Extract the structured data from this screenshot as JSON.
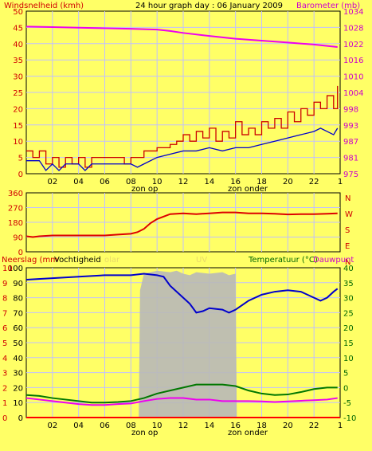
{
  "header": {
    "left_label": "Windsnelheid (kmh)",
    "title": "24 hour graph day : 06 January 2009",
    "right_label": "Barometer (mb)"
  },
  "x_axis": {
    "tick_labels": [
      "02",
      "04",
      "06",
      "08",
      "10",
      "12",
      "14",
      "16",
      "18",
      "20",
      "22",
      "1"
    ],
    "sunrise_label": "zon op",
    "sunset_label": "zon onder"
  },
  "colors": {
    "background": "#ffff66",
    "plot_bg": "#ffff66",
    "grid": "#c0c0ff",
    "wind_gust": "#cc0000",
    "wind_avg": "#0000cc",
    "barometer": "#ee00ee",
    "direction": "#dd0000",
    "humidity": "#0000cc",
    "temperature": "#007700",
    "dewpoint": "#ee00ee",
    "solar": "#b8b8b8",
    "rain": "#ff0000"
  },
  "panels": {
    "wind": {
      "y_left_ticks": [
        "0",
        "5",
        "10",
        "15",
        "20",
        "25",
        "30",
        "35",
        "40",
        "45",
        "50"
      ],
      "y_right_ticks": [
        "975",
        "981",
        "987",
        "993",
        "998",
        "1004",
        "1010",
        "1016",
        "1022",
        "1028",
        "1034"
      ]
    },
    "direction": {
      "y_left_ticks": [
        "0",
        "90",
        "180",
        "270",
        "360"
      ],
      "y_right_letters": [
        "N",
        "W",
        "S",
        "E",
        "N"
      ]
    },
    "weather": {
      "left_label_a": "Neerslag (mm",
      "left_label_b": "Vochtigheid",
      "faint_label_a": "olar",
      "faint_label_b": "UV",
      "right_label_a": "Temperatuur (°C)",
      "right_label_b": "Dauwpunt",
      "y_left_ticks": [
        "0",
        "10",
        "20",
        "30",
        "40",
        "50",
        "60",
        "70",
        "80",
        "90",
        "100"
      ],
      "y_left_small": [
        "0",
        "1",
        "2",
        "3",
        "4",
        "5",
        "6",
        "7",
        "8",
        "9",
        "10"
      ],
      "y_right_ticks": [
        "-10",
        "-5",
        "0",
        "5",
        "10",
        "15",
        "20",
        "25",
        "30",
        "35",
        "40"
      ]
    }
  },
  "chart_data": [
    {
      "type": "line",
      "title": "24 hour graph day : 06 January 2009",
      "x_unit": "hour",
      "xlim": [
        0,
        24
      ],
      "series": [
        {
          "name": "Windsnelheid (kmh)",
          "axis": "left",
          "ylim": [
            0,
            50
          ],
          "points": [
            [
              0,
              7
            ],
            [
              0.5,
              5
            ],
            [
              1,
              7
            ],
            [
              1.5,
              3
            ],
            [
              2,
              5
            ],
            [
              2.5,
              2
            ],
            [
              3,
              5
            ],
            [
              3.5,
              3
            ],
            [
              4,
              5
            ],
            [
              4.5,
              2
            ],
            [
              5,
              5
            ],
            [
              6,
              5
            ],
            [
              7,
              5
            ],
            [
              7.5,
              3
            ],
            [
              8,
              5
            ],
            [
              8.5,
              5
            ],
            [
              9,
              7
            ],
            [
              9.5,
              7
            ],
            [
              10,
              8
            ],
            [
              10.5,
              8
            ],
            [
              11,
              9
            ],
            [
              11.5,
              10
            ],
            [
              12,
              12
            ],
            [
              12.5,
              10
            ],
            [
              13,
              13
            ],
            [
              13.5,
              11
            ],
            [
              14,
              14
            ],
            [
              14.5,
              10
            ],
            [
              15,
              13
            ],
            [
              15.5,
              11
            ],
            [
              16,
              16
            ],
            [
              16.5,
              12
            ],
            [
              17,
              14
            ],
            [
              17.5,
              12
            ],
            [
              18,
              16
            ],
            [
              18.5,
              14
            ],
            [
              19,
              17
            ],
            [
              19.5,
              14
            ],
            [
              20,
              19
            ],
            [
              20.5,
              16
            ],
            [
              21,
              20
            ],
            [
              21.5,
              18
            ],
            [
              22,
              22
            ],
            [
              22.5,
              20
            ],
            [
              23,
              24
            ],
            [
              23.5,
              20
            ],
            [
              23.8,
              27
            ]
          ]
        },
        {
          "name": "Windsnelheid gemiddeld",
          "axis": "left",
          "ylim": [
            0,
            50
          ],
          "points": [
            [
              0,
              4
            ],
            [
              1,
              4
            ],
            [
              1.5,
              1
            ],
            [
              2,
              3
            ],
            [
              2.5,
              1
            ],
            [
              3,
              3
            ],
            [
              4,
              3
            ],
            [
              4.5,
              1
            ],
            [
              5,
              3
            ],
            [
              6,
              3
            ],
            [
              7,
              3
            ],
            [
              8,
              3
            ],
            [
              8.5,
              2
            ],
            [
              9,
              3
            ],
            [
              10,
              5
            ],
            [
              11,
              6
            ],
            [
              12,
              7
            ],
            [
              13,
              7
            ],
            [
              14,
              8
            ],
            [
              15,
              7
            ],
            [
              16,
              8
            ],
            [
              17,
              8
            ],
            [
              18,
              9
            ],
            [
              19,
              10
            ],
            [
              20,
              11
            ],
            [
              21,
              12
            ],
            [
              22,
              13
            ],
            [
              22.5,
              14
            ],
            [
              23,
              13
            ],
            [
              23.5,
              12
            ],
            [
              23.8,
              14
            ]
          ]
        },
        {
          "name": "Barometer (mb)",
          "axis": "right",
          "ylim": [
            975,
            1034
          ],
          "points": [
            [
              0,
              1028.4
            ],
            [
              2,
              1028.2
            ],
            [
              4,
              1028.0
            ],
            [
              6,
              1027.8
            ],
            [
              8,
              1027.6
            ],
            [
              10,
              1027.3
            ],
            [
              11,
              1026.8
            ],
            [
              12,
              1026.1
            ],
            [
              14,
              1025.0
            ],
            [
              16,
              1024.0
            ],
            [
              18,
              1023.3
            ],
            [
              20,
              1022.6
            ],
            [
              22,
              1021.9
            ],
            [
              23.8,
              1021.0
            ]
          ]
        }
      ]
    },
    {
      "type": "line",
      "x_unit": "hour",
      "xlim": [
        0,
        24
      ],
      "series": [
        {
          "name": "Windrichting",
          "ylim": [
            0,
            360
          ],
          "points": [
            [
              0,
              95
            ],
            [
              0.5,
              90
            ],
            [
              1,
              95
            ],
            [
              2,
              100
            ],
            [
              4,
              100
            ],
            [
              6,
              100
            ],
            [
              7,
              105
            ],
            [
              8,
              110
            ],
            [
              8.5,
              120
            ],
            [
              9,
              140
            ],
            [
              9.5,
              175
            ],
            [
              10,
              200
            ],
            [
              10.5,
              215
            ],
            [
              11,
              230
            ],
            [
              12,
              235
            ],
            [
              13,
              230
            ],
            [
              14,
              235
            ],
            [
              15,
              240
            ],
            [
              16,
              240
            ],
            [
              17,
              235
            ],
            [
              18,
              235
            ],
            [
              19,
              232
            ],
            [
              20,
              228
            ],
            [
              21,
              230
            ],
            [
              22,
              230
            ],
            [
              23,
              232
            ],
            [
              23.8,
              235
            ]
          ]
        }
      ]
    },
    {
      "type": "line",
      "x_unit": "hour",
      "xlim": [
        0,
        24
      ],
      "series": [
        {
          "name": "Vochtigheid",
          "axis": "left",
          "ylim": [
            0,
            100
          ],
          "points": [
            [
              0,
              92
            ],
            [
              2,
              93
            ],
            [
              4,
              94
            ],
            [
              6,
              95
            ],
            [
              8,
              95
            ],
            [
              9,
              96
            ],
            [
              10,
              95
            ],
            [
              10.5,
              94
            ],
            [
              11,
              88
            ],
            [
              11.5,
              84
            ],
            [
              12,
              80
            ],
            [
              12.5,
              76
            ],
            [
              13,
              70
            ],
            [
              13.5,
              71
            ],
            [
              14,
              73
            ],
            [
              15,
              72
            ],
            [
              15.5,
              70
            ],
            [
              16,
              72
            ],
            [
              17,
              78
            ],
            [
              18,
              82
            ],
            [
              19,
              84
            ],
            [
              20,
              85
            ],
            [
              21,
              84
            ],
            [
              22,
              80
            ],
            [
              22.5,
              78
            ],
            [
              23,
              80
            ],
            [
              23.5,
              84
            ],
            [
              23.8,
              86
            ]
          ]
        },
        {
          "name": "Temperatuur (°C)",
          "axis": "right",
          "ylim": [
            -10,
            40
          ],
          "points": [
            [
              0,
              -2.5
            ],
            [
              1,
              -2.8
            ],
            [
              2,
              -3.5
            ],
            [
              3,
              -4.0
            ],
            [
              4,
              -4.5
            ],
            [
              5,
              -5.0
            ],
            [
              6,
              -5.0
            ],
            [
              7,
              -4.8
            ],
            [
              8,
              -4.5
            ],
            [
              9,
              -3.5
            ],
            [
              10,
              -2.0
            ],
            [
              11,
              -1.0
            ],
            [
              12,
              0.0
            ],
            [
              13,
              1.0
            ],
            [
              14,
              1.0
            ],
            [
              15,
              1.0
            ],
            [
              16,
              0.5
            ],
            [
              17,
              -1.0
            ],
            [
              18,
              -2.0
            ],
            [
              19,
              -2.5
            ],
            [
              20,
              -2.3
            ],
            [
              21,
              -1.5
            ],
            [
              22,
              -0.5
            ],
            [
              23,
              0.0
            ],
            [
              23.8,
              0.0
            ]
          ]
        },
        {
          "name": "Dauwpunt",
          "axis": "right",
          "ylim": [
            -10,
            40
          ],
          "points": [
            [
              0,
              -3.5
            ],
            [
              1,
              -4.0
            ],
            [
              2,
              -4.5
            ],
            [
              3,
              -5.0
            ],
            [
              4,
              -5.5
            ],
            [
              5,
              -5.8
            ],
            [
              6,
              -5.8
            ],
            [
              7,
              -5.5
            ],
            [
              8,
              -5.3
            ],
            [
              9,
              -4.5
            ],
            [
              10,
              -3.8
            ],
            [
              11,
              -3.5
            ],
            [
              12,
              -3.5
            ],
            [
              13,
              -4.0
            ],
            [
              14,
              -4.0
            ],
            [
              15,
              -4.5
            ],
            [
              16,
              -4.5
            ],
            [
              17,
              -4.5
            ],
            [
              18,
              -4.6
            ],
            [
              19,
              -4.8
            ],
            [
              20,
              -4.6
            ],
            [
              21,
              -4.4
            ],
            [
              22,
              -4.2
            ],
            [
              23,
              -4.0
            ],
            [
              23.8,
              -3.5
            ]
          ]
        },
        {
          "name": "Solar",
          "type": "area",
          "ylim": [
            0,
            100
          ],
          "points": [
            [
              8.6,
              0
            ],
            [
              8.7,
              85
            ],
            [
              9,
              96
            ],
            [
              10,
              98
            ],
            [
              11,
              97
            ],
            [
              11.5,
              98
            ],
            [
              12,
              96
            ],
            [
              12.5,
              95
            ],
            [
              13,
              97
            ],
            [
              14,
              96
            ],
            [
              15,
              97
            ],
            [
              15.5,
              95
            ],
            [
              16,
              96
            ],
            [
              16.1,
              0
            ]
          ]
        },
        {
          "name": "Neerslag (mm",
          "axis": "left",
          "ylim": [
            0,
            10
          ],
          "points": [
            [
              0,
              0
            ],
            [
              24,
              0
            ]
          ]
        }
      ]
    }
  ]
}
